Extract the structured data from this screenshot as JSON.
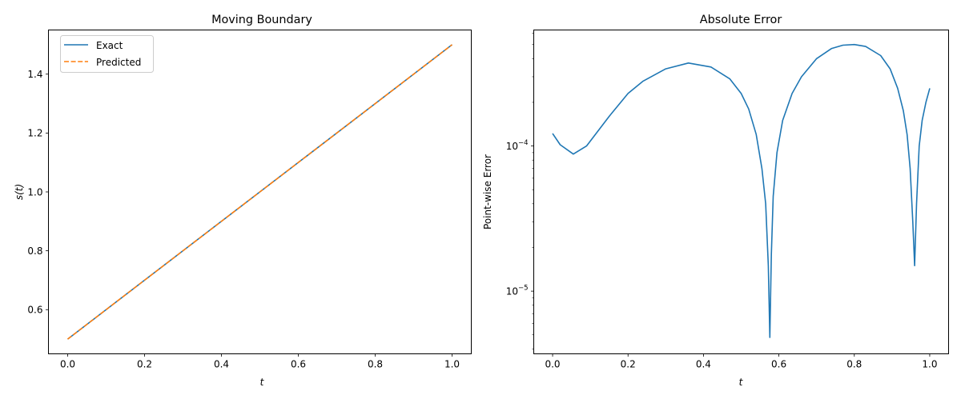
{
  "chart_data": [
    {
      "type": "line",
      "title": "Moving Boundary",
      "xlabel": "t",
      "ylabel": "s(t)",
      "xlim": [
        -0.05,
        1.05
      ],
      "ylim": [
        0.45,
        1.55
      ],
      "xticks": [
        0.0,
        0.2,
        0.4,
        0.6,
        0.8,
        1.0
      ],
      "xtick_labels": [
        "0.0",
        "0.2",
        "0.4",
        "0.6",
        "0.8",
        "1.0"
      ],
      "yticks": [
        0.6,
        0.8,
        1.0,
        1.2,
        1.4
      ],
      "ytick_labels": [
        "0.6",
        "0.8",
        "1.0",
        "1.2",
        "1.4"
      ],
      "grid": false,
      "legend_position": "upper left",
      "x": [
        0.0,
        0.25,
        0.5,
        0.75,
        1.0
      ],
      "series": [
        {
          "name": "Exact",
          "color": "#1f77b4",
          "style": "solid",
          "values": [
            0.5,
            0.75,
            1.0,
            1.25,
            1.5
          ]
        },
        {
          "name": "Predicted",
          "color": "#ff7f0e",
          "style": "dashed",
          "values": [
            0.5,
            0.75,
            1.0,
            1.25,
            1.5
          ]
        }
      ]
    },
    {
      "type": "line",
      "title": "Absolute Error",
      "xlabel": "t",
      "ylabel": "Point-wise Error",
      "yscale": "log",
      "xlim": [
        -0.05,
        1.05
      ],
      "ylim": [
        3.7e-06,
        0.00063
      ],
      "xticks": [
        0.0,
        0.2,
        0.4,
        0.6,
        0.8,
        1.0
      ],
      "xtick_labels": [
        "0.0",
        "0.2",
        "0.4",
        "0.6",
        "0.8",
        "1.0"
      ],
      "yticks": [
        1e-05,
        0.0001
      ],
      "ytick_labels": [
        {
          "base": "10",
          "exp": "−5"
        },
        {
          "base": "10",
          "exp": "−4"
        }
      ],
      "grid": false,
      "series": [
        {
          "name": "Absolute Error",
          "color": "#1f77b4",
          "x": [
            0.0,
            0.02,
            0.055,
            0.09,
            0.15,
            0.2,
            0.24,
            0.3,
            0.36,
            0.42,
            0.47,
            0.5,
            0.52,
            0.54,
            0.555,
            0.565,
            0.572,
            0.576,
            0.58,
            0.585,
            0.595,
            0.61,
            0.635,
            0.66,
            0.7,
            0.74,
            0.77,
            0.8,
            0.83,
            0.87,
            0.895,
            0.915,
            0.93,
            0.94,
            0.948,
            0.955,
            0.96,
            0.965,
            0.972,
            0.98,
            0.99,
            1.0
          ],
          "values": [
            0.000122,
            0.000102,
            8.8e-05,
            0.0001,
            0.00016,
            0.00023,
            0.00028,
            0.00034,
            0.000373,
            0.00035,
            0.00029,
            0.00023,
            0.00018,
            0.00012,
            7e-05,
            4e-05,
            1.5e-05,
            4.8e-06,
            1.8e-05,
            4.5e-05,
            9e-05,
            0.00015,
            0.00023,
            0.0003,
            0.0004,
            0.00047,
            0.000495,
            0.0005,
            0.000485,
            0.00042,
            0.00034,
            0.00025,
            0.000175,
            0.00012,
            7e-05,
            3e-05,
            1.5e-05,
            4e-05,
            0.0001,
            0.00015,
            0.0002,
            0.00025
          ]
        }
      ]
    }
  ]
}
